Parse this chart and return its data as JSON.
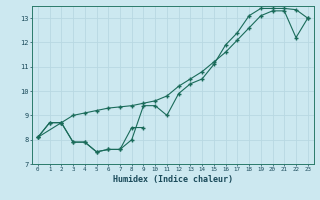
{
  "xlabel": "Humidex (Indice chaleur)",
  "bg_color": "#cce8f0",
  "grid_color": "#b8d8e2",
  "line_color": "#1a6b5a",
  "xlim": [
    -0.5,
    23.5
  ],
  "ylim": [
    7.0,
    13.5
  ],
  "yticks": [
    7,
    8,
    9,
    10,
    11,
    12,
    13
  ],
  "xticks": [
    0,
    1,
    2,
    3,
    4,
    5,
    6,
    7,
    8,
    9,
    10,
    11,
    12,
    13,
    14,
    15,
    16,
    17,
    18,
    19,
    20,
    21,
    22,
    23
  ],
  "series1_x": [
    0,
    1,
    2,
    3,
    4,
    5,
    6,
    7,
    8,
    9,
    10,
    11,
    12,
    13,
    14,
    15,
    16,
    17,
    18,
    19,
    20,
    21,
    22,
    23
  ],
  "series1_y": [
    8.1,
    8.7,
    8.7,
    9.0,
    9.1,
    9.2,
    9.3,
    9.35,
    9.4,
    9.5,
    9.6,
    9.8,
    10.2,
    10.5,
    10.8,
    11.2,
    11.6,
    12.1,
    12.6,
    13.1,
    13.3,
    13.3,
    12.2,
    13.0
  ],
  "series2_x": [
    0,
    1,
    2,
    3,
    4,
    5,
    6,
    7,
    8,
    9,
    10,
    11,
    12,
    13,
    14,
    15,
    16,
    17,
    18,
    19,
    20,
    21,
    22,
    23
  ],
  "series2_y": [
    8.1,
    8.7,
    8.7,
    7.9,
    7.9,
    7.5,
    7.6,
    7.6,
    8.0,
    9.4,
    9.4,
    9.0,
    9.9,
    10.3,
    10.5,
    11.1,
    11.9,
    12.4,
    13.1,
    13.4,
    13.4,
    13.4,
    13.35,
    13.0
  ],
  "series3_x": [
    0,
    2,
    3,
    4,
    5,
    6,
    7,
    8,
    9
  ],
  "series3_y": [
    8.1,
    8.7,
    7.9,
    7.9,
    7.5,
    7.6,
    7.6,
    8.5,
    8.5
  ]
}
